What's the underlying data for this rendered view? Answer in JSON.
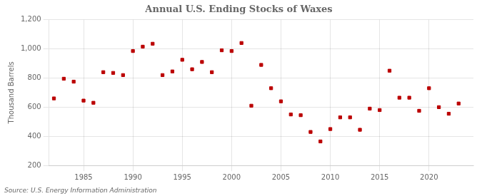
{
  "chart_data": {
    "type": "scatter",
    "title": "Annual U.S. Ending Stocks of Waxes",
    "ylabel": "Thousand Barrels",
    "annotation": "Source: U.S. Energy Information Administration",
    "x": [
      1982,
      1983,
      1984,
      1985,
      1986,
      1987,
      1988,
      1989,
      1990,
      1991,
      1992,
      1993,
      1994,
      1995,
      1996,
      1997,
      1998,
      1999,
      2000,
      2001,
      2002,
      2003,
      2004,
      2005,
      2006,
      2007,
      2008,
      2009,
      2010,
      2011,
      2012,
      2013,
      2014,
      2015,
      2016,
      2017,
      2018,
      2019,
      2020,
      2021,
      2022,
      2023
    ],
    "values": [
      660,
      795,
      775,
      645,
      630,
      840,
      835,
      820,
      985,
      1015,
      1035,
      820,
      845,
      925,
      860,
      910,
      840,
      990,
      985,
      1040,
      610,
      890,
      730,
      640,
      550,
      545,
      430,
      365,
      450,
      530,
      530,
      445,
      590,
      580,
      850,
      665,
      665,
      575,
      730,
      600,
      555,
      625
    ],
    "color": "#bb0000",
    "marker": "square",
    "xlim": [
      1981.5,
      2024.5
    ],
    "xticks": [
      1985,
      1990,
      1995,
      2000,
      2005,
      2010,
      2015,
      2020
    ],
    "ylim": [
      200,
      1200
    ],
    "yticks": [
      200,
      400,
      600,
      800,
      {
        "value": 1000,
        "label": "1,000"
      },
      {
        "value": 1200,
        "label": "1,200"
      }
    ],
    "grid": true
  }
}
